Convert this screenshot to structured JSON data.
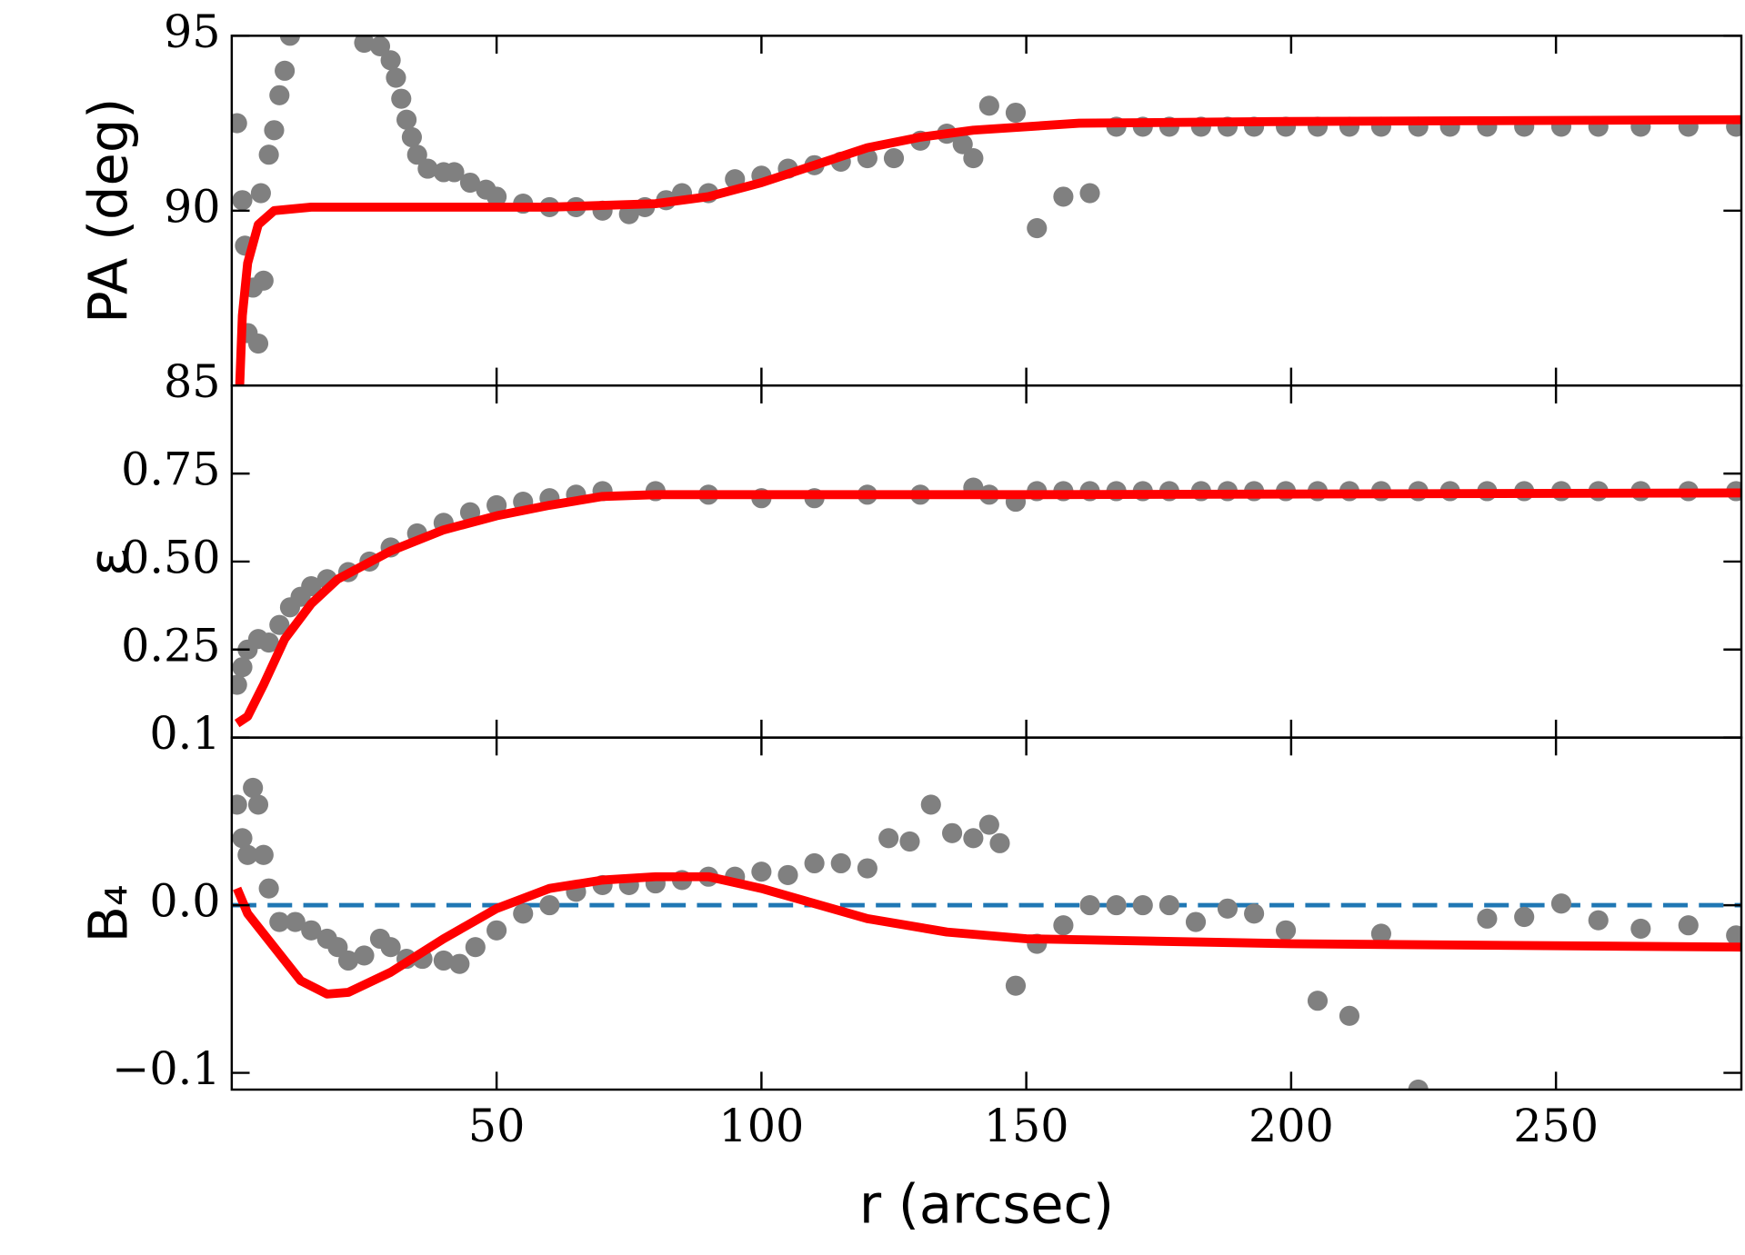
{
  "chart_data": [
    {
      "type": "scatter",
      "ylabel": "PA (deg)",
      "xlim": [
        0,
        285
      ],
      "ylim": [
        85,
        95
      ],
      "yticks": [
        85,
        90,
        95
      ],
      "series": [
        {
          "type": "scatter",
          "color": "#808080",
          "x": [
            1,
            2,
            2.5,
            3,
            4,
            5,
            5.5,
            6,
            7,
            8,
            9,
            10,
            11,
            25,
            28,
            30,
            31,
            32,
            33,
            34,
            35,
            37,
            40,
            42,
            45,
            48,
            50,
            55,
            60,
            65,
            70,
            75,
            78,
            82,
            85,
            90,
            95,
            100,
            105,
            110,
            115,
            120,
            125,
            130,
            135,
            138,
            140,
            143,
            148,
            152,
            157,
            162,
            167,
            172,
            177,
            183,
            188,
            193,
            199,
            205,
            211,
            217,
            224,
            230,
            237,
            244,
            251,
            258,
            266,
            275,
            284
          ],
          "values": [
            92.5,
            90.3,
            89,
            86.5,
            87.8,
            86.2,
            90.5,
            88,
            91.6,
            92.3,
            93.3,
            94,
            95,
            94.8,
            94.7,
            94.3,
            93.8,
            93.2,
            92.6,
            92.1,
            91.6,
            91.2,
            91.1,
            91.1,
            90.8,
            90.6,
            90.4,
            90.2,
            90.1,
            90.1,
            90.0,
            89.9,
            90.1,
            90.3,
            90.5,
            90.5,
            90.9,
            91.0,
            91.2,
            91.3,
            91.4,
            91.5,
            91.5,
            92.0,
            92.2,
            91.9,
            91.5,
            93.0,
            92.8,
            89.5,
            90.4,
            90.5,
            92.4,
            92.4,
            92.4,
            92.4,
            92.4,
            92.4,
            92.4,
            92.4,
            92.4,
            92.4,
            92.4,
            92.4,
            92.4,
            92.4,
            92.4,
            92.4,
            92.4,
            92.4,
            92.4
          ]
        },
        {
          "type": "line",
          "color": "#ff0000",
          "x": [
            1.5,
            2,
            3,
            5,
            8,
            15,
            30,
            60,
            80,
            90,
            100,
            110,
            120,
            130,
            140,
            160,
            200,
            285
          ],
          "values": [
            85,
            87,
            88.5,
            89.6,
            90.0,
            90.1,
            90.1,
            90.1,
            90.2,
            90.4,
            90.8,
            91.3,
            91.8,
            92.1,
            92.3,
            92.5,
            92.55,
            92.6
          ]
        }
      ]
    },
    {
      "type": "scatter",
      "ylabel": "ε",
      "xlim": [
        0,
        285
      ],
      "ylim": [
        0,
        1
      ],
      "yticks": [
        0.25,
        {
          "value": 0.5,
          "label": "0.50"
        },
        0.75
      ],
      "series": [
        {
          "type": "scatter",
          "color": "#808080",
          "x": [
            1,
            2,
            3,
            5,
            7,
            9,
            11,
            13,
            15,
            18,
            22,
            26,
            30,
            35,
            40,
            45,
            50,
            55,
            60,
            65,
            70,
            80,
            90,
            100,
            110,
            120,
            130,
            140,
            143,
            148,
            152,
            157,
            162,
            167,
            172,
            177,
            183,
            188,
            193,
            199,
            205,
            211,
            217,
            224,
            230,
            237,
            244,
            251,
            258,
            266,
            275,
            284
          ],
          "values": [
            0.15,
            0.2,
            0.25,
            0.28,
            0.27,
            0.32,
            0.37,
            0.4,
            0.43,
            0.45,
            0.47,
            0.5,
            0.54,
            0.58,
            0.61,
            0.64,
            0.66,
            0.67,
            0.68,
            0.69,
            0.7,
            0.7,
            0.69,
            0.68,
            0.68,
            0.69,
            0.69,
            0.71,
            0.69,
            0.67,
            0.7,
            0.7,
            0.7,
            0.7,
            0.7,
            0.7,
            0.7,
            0.7,
            0.7,
            0.7,
            0.7,
            0.7,
            0.7,
            0.7,
            0.7,
            0.7,
            0.7,
            0.7,
            0.7,
            0.7,
            0.7,
            0.7
          ]
        },
        {
          "type": "line",
          "color": "#ff0000",
          "x": [
            1,
            3,
            6,
            10,
            15,
            20,
            30,
            40,
            50,
            60,
            70,
            80,
            100,
            150,
            285
          ],
          "values": [
            0.04,
            0.06,
            0.15,
            0.28,
            0.38,
            0.45,
            0.53,
            0.59,
            0.63,
            0.66,
            0.685,
            0.69,
            0.69,
            0.69,
            0.695
          ]
        }
      ]
    },
    {
      "type": "scatter",
      "ylabel": "B₄",
      "xlabel": "r (arcsec)",
      "xlim": [
        0,
        285
      ],
      "ylim": [
        -0.11,
        0.1
      ],
      "xticks": [
        50,
        100,
        150,
        200,
        250
      ],
      "yticks": [
        {
          "value": -0.1,
          "label": "−0.1"
        },
        {
          "value": 0,
          "label": "0.0"
        },
        0.1
      ],
      "hline": {
        "value": 0,
        "color": "#1f77b4"
      },
      "series": [
        {
          "type": "scatter",
          "color": "#808080",
          "x": [
            1,
            2,
            3,
            4,
            5,
            6,
            7,
            9,
            12,
            15,
            18,
            20,
            22,
            25,
            28,
            30,
            33,
            36,
            40,
            43,
            46,
            50,
            55,
            60,
            65,
            70,
            75,
            80,
            85,
            90,
            95,
            100,
            105,
            110,
            115,
            120,
            124,
            128,
            132,
            136,
            140,
            143,
            145,
            148,
            152,
            157,
            162,
            167,
            172,
            177,
            182,
            188,
            193,
            199,
            205,
            211,
            217,
            224,
            237,
            244,
            251,
            258,
            266,
            275,
            284
          ],
          "values": [
            0.06,
            0.04,
            0.03,
            0.07,
            0.06,
            0.03,
            0.01,
            -0.01,
            -0.01,
            -0.015,
            -0.02,
            -0.025,
            -0.033,
            -0.03,
            -0.02,
            -0.025,
            -0.032,
            -0.032,
            -0.033,
            -0.035,
            -0.025,
            -0.015,
            -0.005,
            0,
            0.008,
            0.012,
            0.012,
            0.013,
            0.015,
            0.017,
            0.017,
            0.02,
            0.018,
            0.025,
            0.025,
            0.022,
            0.04,
            0.038,
            0.06,
            0.043,
            0.04,
            0.048,
            0.037,
            -0.048,
            -0.023,
            -0.012,
            0,
            0,
            0,
            0,
            -0.01,
            -0.002,
            -0.005,
            -0.015,
            -0.057,
            -0.066,
            -0.017,
            -0.11,
            -0.008,
            -0.007,
            0.001,
            -0.009,
            -0.014,
            -0.012,
            -0.018
          ]
        },
        {
          "type": "line",
          "color": "#ff0000",
          "x": [
            1,
            3,
            8,
            13,
            18,
            22,
            30,
            40,
            50,
            60,
            70,
            80,
            90,
            100,
            110,
            120,
            135,
            150,
            200,
            285
          ],
          "values": [
            0.01,
            -0.005,
            -0.025,
            -0.045,
            -0.053,
            -0.052,
            -0.04,
            -0.02,
            -0.002,
            0.01,
            0.015,
            0.017,
            0.017,
            0.01,
            0.001,
            -0.008,
            -0.016,
            -0.02,
            -0.023,
            -0.025
          ]
        }
      ]
    }
  ]
}
